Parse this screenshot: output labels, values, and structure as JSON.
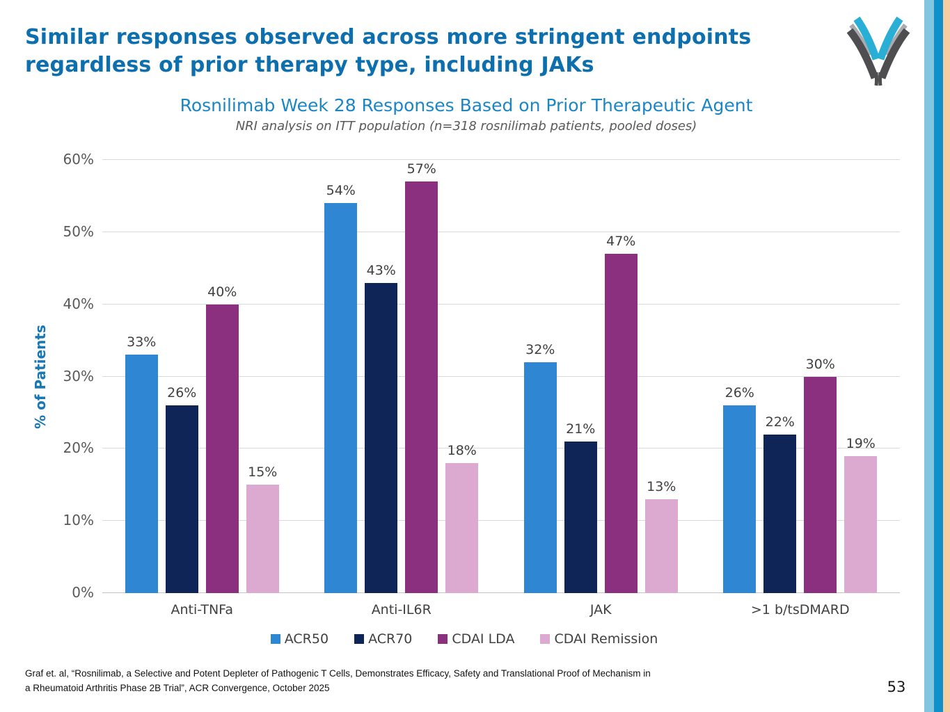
{
  "slide": {
    "title_line1": "Similar responses observed across more stringent endpoints",
    "title_line2": "regardless of prior therapy type, including JAKs",
    "footer_line1": "Graf et. al, “Rosnilimab, a Selective and Potent Depleter of Pathogenic T Cells, Demonstrates Efficacy, Safety and Translational Proof of Mechanism in",
    "footer_line2": "a Rheumatoid Arthritis Phase 2B Trial”, ACR Convergence, October 2025",
    "page_number": "53"
  },
  "logo": {
    "name": "v-swoosh-logo",
    "colors": {
      "cyan": "#29aed6",
      "dark_gray": "#4e4e50",
      "light_gray": "#a9abae"
    }
  },
  "edge_stripes": {
    "light_blue": "#82c5e0",
    "blue": "#0f90c8",
    "tan": "#f6cda0"
  },
  "chart_data": {
    "type": "bar",
    "title": "Rosnilimab Week 28 Responses Based on Prior Therapeutic Agent",
    "subtitle": "NRI analysis on ITT population (n=318 rosnilimab patients, pooled doses)",
    "ylabel": "% of Patients",
    "xlabel": "",
    "ylim": [
      0,
      60
    ],
    "ytick_step": 10,
    "value_suffix": "%",
    "grid": true,
    "legend_position": "bottom",
    "categories": [
      "Anti-TNFa",
      "Anti-IL6R",
      "JAK",
      ">1 b/tsDMARD"
    ],
    "series": [
      {
        "name": "ACR50",
        "color": "#2f87d3",
        "values": [
          33,
          54,
          32,
          26
        ]
      },
      {
        "name": "ACR70",
        "color": "#0f2557",
        "values": [
          26,
          43,
          21,
          22
        ]
      },
      {
        "name": "CDAI LDA",
        "color": "#8b2f7f",
        "values": [
          40,
          57,
          47,
          30
        ]
      },
      {
        "name": "CDAI Remission",
        "color": "#dcaad0",
        "values": [
          15,
          18,
          13,
          19
        ]
      }
    ]
  }
}
